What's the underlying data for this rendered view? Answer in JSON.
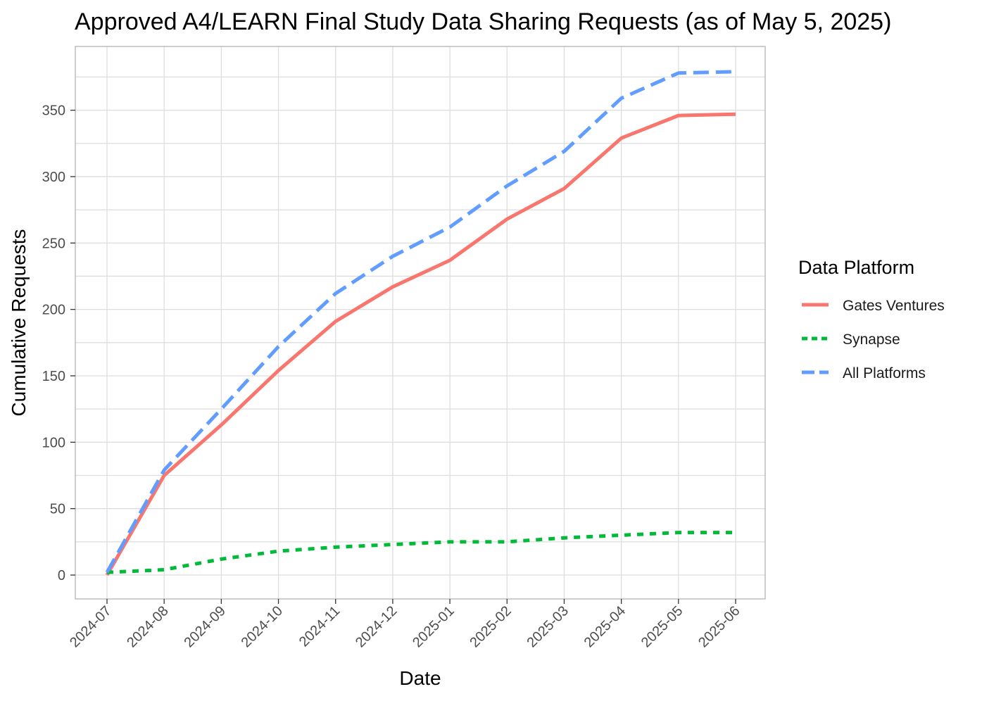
{
  "chart_data": {
    "type": "line",
    "title": "Approved A4/LEARN Final Study Data Sharing Requests (as of May 5, 2025)",
    "xlabel": "Date",
    "ylabel": "Cumulative Requests",
    "x": [
      "2024-07",
      "2024-08",
      "2024-09",
      "2024-10",
      "2024-11",
      "2024-12",
      "2025-01",
      "2025-02",
      "2025-03",
      "2025-04",
      "2025-05",
      "2025-06"
    ],
    "x_tick_labels": [
      "2024-07",
      "2024-08",
      "2024-09",
      "2024-10",
      "2024-11",
      "2024-12",
      "2025-01",
      "2025-02",
      "2025-03",
      "2025-04",
      "2025-05",
      "2025-06"
    ],
    "y_ticks": [
      0,
      50,
      100,
      150,
      200,
      250,
      300,
      350
    ],
    "ylim": [
      -18,
      398
    ],
    "grid": true,
    "legend": {
      "title": "Data Platform",
      "placement": "right"
    },
    "series": [
      {
        "name": "Gates Ventures",
        "color": "#F8766D",
        "dash": "solid",
        "values": [
          0,
          75,
          113,
          154,
          191,
          217,
          237,
          268,
          291,
          329,
          346,
          347
        ]
      },
      {
        "name": "Synapse",
        "color": "#00BA38",
        "dash": "dotted",
        "values": [
          2,
          4,
          12,
          18,
          21,
          23,
          25,
          25,
          28,
          30,
          32,
          32
        ]
      },
      {
        "name": "All Platforms",
        "color": "#619CFF",
        "dash": "dashed",
        "values": [
          2,
          79,
          125,
          172,
          212,
          240,
          262,
          293,
          319,
          359,
          378,
          379
        ]
      }
    ]
  }
}
